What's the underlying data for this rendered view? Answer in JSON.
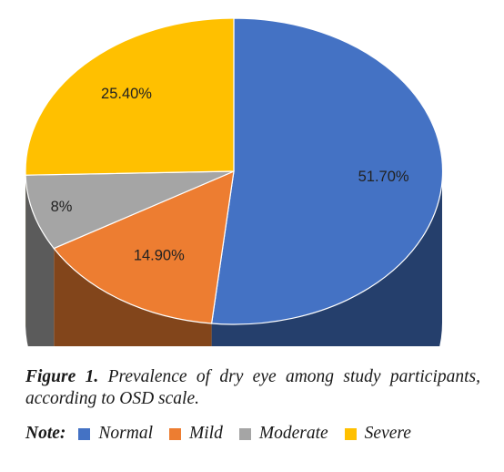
{
  "chart_data": {
    "type": "pie",
    "style": "3d",
    "categories": [
      "Normal",
      "Mild",
      "Moderate",
      "Severe"
    ],
    "values": [
      51.7,
      14.9,
      8,
      25.4
    ],
    "data_labels": [
      "51.70%",
      "14.90%",
      "8%",
      "25.40%"
    ],
    "colors": [
      "#4472C4",
      "#ED7D31",
      "#A5A5A5",
      "#FFC000"
    ],
    "start_angle_deg": 0,
    "direction": "clockwise"
  },
  "caption": {
    "figure_label": "Figure 1.",
    "text": "Prevalence of dry eye among study participants, according to OSD scale."
  },
  "legend": {
    "note_label": "Note:",
    "items": [
      {
        "label": "Normal",
        "color": "#4472C4"
      },
      {
        "label": "Mild",
        "color": "#ED7D31"
      },
      {
        "label": "Moderate",
        "color": "#A5A5A5"
      },
      {
        "label": "Severe",
        "color": "#FFC000"
      }
    ]
  }
}
